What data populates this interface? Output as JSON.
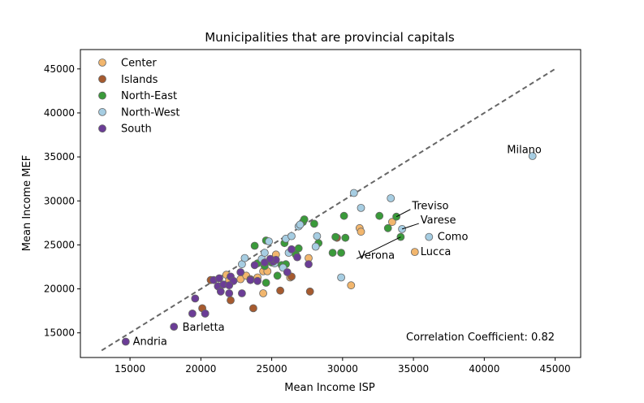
{
  "chart_data": {
    "type": "scatter",
    "title": "Municipalities that are provincial capitals",
    "xlabel": "Mean Income ISP",
    "ylabel": "Mean Income MEF",
    "xlim": [
      11500,
      46800
    ],
    "ylim": [
      12200,
      47200
    ],
    "xticks": [
      15000,
      20000,
      25000,
      30000,
      35000,
      40000,
      45000
    ],
    "yticks": [
      15000,
      20000,
      25000,
      30000,
      35000,
      40000,
      45000
    ],
    "grid": false,
    "legend_position": "top-left",
    "correlation_text": "Correlation Coefficient: 0.82",
    "reference_line": {
      "style": "dashed",
      "color": "#666666",
      "points": [
        [
          13000,
          13000
        ],
        [
          45000,
          45000
        ]
      ]
    },
    "series": [
      {
        "name": "Center",
        "color": "#f2b66d",
        "points": [
          [
            21800,
            21600
          ],
          [
            22000,
            21000
          ],
          [
            22800,
            21100
          ],
          [
            23200,
            21500
          ],
          [
            24000,
            21300
          ],
          [
            24400,
            22000
          ],
          [
            24700,
            22000
          ],
          [
            24400,
            19500
          ],
          [
            25300,
            23900
          ],
          [
            26300,
            21300
          ],
          [
            27600,
            23500
          ],
          [
            30600,
            20400
          ],
          [
            31200,
            26900
          ],
          [
            31300,
            26500
          ],
          [
            33500,
            27600
          ],
          [
            35100,
            24200
          ]
        ]
      },
      {
        "name": "Islands",
        "color": "#a65a2e",
        "points": [
          [
            20300,
            17200
          ],
          [
            20100,
            17800
          ],
          [
            20700,
            21000
          ],
          [
            21300,
            20200
          ],
          [
            22100,
            18700
          ],
          [
            23500,
            21100
          ],
          [
            23700,
            17800
          ],
          [
            25600,
            19800
          ],
          [
            26400,
            21400
          ],
          [
            27700,
            19700
          ],
          [
            29600,
            25800
          ]
        ]
      },
      {
        "name": "North-East",
        "color": "#3a9a3a",
        "points": [
          [
            23800,
            24900
          ],
          [
            24000,
            22900
          ],
          [
            24500,
            22600
          ],
          [
            24600,
            25500
          ],
          [
            24600,
            20700
          ],
          [
            25000,
            23000
          ],
          [
            25400,
            21500
          ],
          [
            25700,
            22700
          ],
          [
            25900,
            25200
          ],
          [
            26000,
            22800
          ],
          [
            26700,
            23900
          ],
          [
            26900,
            24600
          ],
          [
            27200,
            27600
          ],
          [
            27300,
            27900
          ],
          [
            28000,
            27400
          ],
          [
            28300,
            25200
          ],
          [
            29300,
            24100
          ],
          [
            29500,
            25900
          ],
          [
            29900,
            24100
          ],
          [
            30100,
            28300
          ],
          [
            30200,
            25800
          ],
          [
            32600,
            28300
          ],
          [
            33200,
            26900
          ],
          [
            33800,
            28200
          ],
          [
            34100,
            25900
          ]
        ]
      },
      {
        "name": "North-West",
        "color": "#a6cde2",
        "points": [
          [
            22900,
            22800
          ],
          [
            23100,
            23500
          ],
          [
            24300,
            23400
          ],
          [
            24500,
            24100
          ],
          [
            24800,
            25400
          ],
          [
            25200,
            22900
          ],
          [
            25800,
            22400
          ],
          [
            26000,
            25700
          ],
          [
            26200,
            24100
          ],
          [
            26400,
            26000
          ],
          [
            26900,
            27100
          ],
          [
            27000,
            27300
          ],
          [
            28100,
            24800
          ],
          [
            28200,
            26000
          ],
          [
            29900,
            21300
          ],
          [
            30800,
            30900
          ],
          [
            31300,
            29200
          ],
          [
            33400,
            30300
          ],
          [
            34200,
            26800
          ],
          [
            36100,
            25900
          ],
          [
            43400,
            35100
          ]
        ]
      },
      {
        "name": "South",
        "color": "#6b3d96",
        "points": [
          [
            14700,
            14000
          ],
          [
            18100,
            15700
          ],
          [
            19400,
            17200
          ],
          [
            19600,
            18900
          ],
          [
            20300,
            17200
          ],
          [
            20900,
            21000
          ],
          [
            21200,
            20300
          ],
          [
            21300,
            21200
          ],
          [
            21400,
            19700
          ],
          [
            21600,
            20500
          ],
          [
            22000,
            19500
          ],
          [
            22100,
            21400
          ],
          [
            22300,
            20900
          ],
          [
            22800,
            21900
          ],
          [
            22900,
            19500
          ],
          [
            23500,
            21000
          ],
          [
            23800,
            22700
          ],
          [
            24000,
            20900
          ],
          [
            24500,
            23000
          ],
          [
            25100,
            23100
          ],
          [
            25300,
            23300
          ],
          [
            26100,
            21900
          ],
          [
            26400,
            24500
          ],
          [
            26800,
            23600
          ],
          [
            27600,
            22800
          ],
          [
            22000,
            20400
          ],
          [
            24900,
            23400
          ]
        ]
      }
    ],
    "annotations": [
      {
        "text": "Milano",
        "x": 43400,
        "y": 35100,
        "tx": 41600,
        "ty": 35800,
        "anchor": "start",
        "arrow": false
      },
      {
        "text": "Treviso",
        "x": 33800,
        "y": 28200,
        "tx": 34900,
        "ty": 29400,
        "anchor": "start",
        "arrow": true
      },
      {
        "text": "Varese",
        "x": 34200,
        "y": 26800,
        "tx": 35500,
        "ty": 27800,
        "anchor": "start",
        "arrow": true
      },
      {
        "text": "Como",
        "x": 36100,
        "y": 25900,
        "tx": 36700,
        "ty": 25900,
        "anchor": "start",
        "arrow": false
      },
      {
        "text": "Verona",
        "x": 34100,
        "y": 25900,
        "tx": 31100,
        "ty": 23800,
        "anchor": "start",
        "arrow": true
      },
      {
        "text": "Lucca",
        "x": 35100,
        "y": 24200,
        "tx": 35500,
        "ty": 24200,
        "anchor": "start",
        "arrow": false
      },
      {
        "text": "Barletta",
        "x": 18100,
        "y": 15700,
        "tx": 18700,
        "ty": 15600,
        "anchor": "start",
        "arrow": false
      },
      {
        "text": "Andria",
        "x": 14700,
        "y": 14000,
        "tx": 15200,
        "ty": 14000,
        "anchor": "start",
        "arrow": false
      }
    ]
  }
}
